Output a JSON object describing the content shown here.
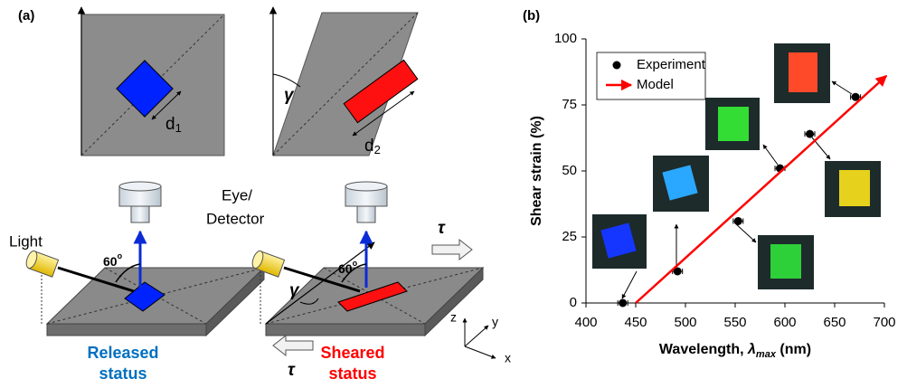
{
  "panel_a": {
    "label": "(a)",
    "top_left": {
      "dimension": "d",
      "dimension_subscript": "1"
    },
    "top_right": {
      "angle": "γ",
      "dimension": "d",
      "dimension_subscript": "2"
    },
    "bottom_left": {
      "source": "Light",
      "detector_line1": "Eye/",
      "detector_line2": "Detector",
      "angle": "60",
      "angle_superscript": "o",
      "status_line1": "Released",
      "status_line2": "status"
    },
    "bottom_right": {
      "angle": "60",
      "angle_superscript": "o",
      "shear_angle": "γ",
      "stress_top": "τ",
      "stress_bottom": "τ",
      "status_line1": "Sheared",
      "status_line2": "status",
      "axis_z": "z",
      "axis_y": "y",
      "axis_x": "x"
    }
  },
  "chart_data": {
    "type": "scatter",
    "panel_label": "(b)",
    "ylabel": "Shear strain (%)",
    "xlabel": {
      "main": "Wavelength, ",
      "symbol": "λ",
      "subscript": "max",
      "unit": " (nm)"
    },
    "xlim": [
      400,
      700
    ],
    "xticks": [
      400,
      450,
      500,
      550,
      600,
      650,
      700
    ],
    "ylim": [
      0,
      100
    ],
    "yticks": [
      0,
      25,
      50,
      75,
      100
    ],
    "grid": false,
    "legend": "upper left",
    "series": [
      {
        "name": "Experiment",
        "color": "#000000",
        "x": [
          437,
          492,
          553,
          595,
          625,
          671
        ],
        "values": [
          0,
          12,
          31,
          51,
          64,
          78
        ],
        "xerr": [
          5,
          5,
          5,
          5,
          5,
          5
        ]
      },
      {
        "name": "Model",
        "color": "#ff0000",
        "x": [
          450,
          702
        ],
        "values": [
          0,
          86
        ]
      }
    ]
  }
}
